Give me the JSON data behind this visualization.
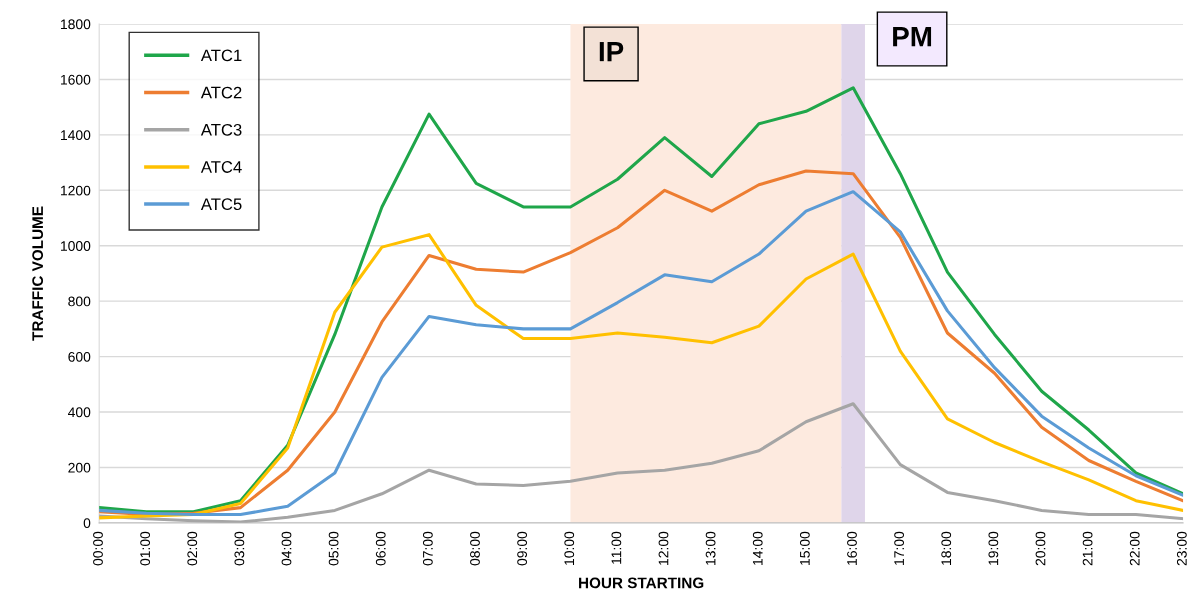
{
  "chart_data": {
    "type": "line",
    "xlabel": "HOUR STARTING",
    "ylabel": "TRAFFIC VOLUME",
    "x": [
      0,
      1,
      2,
      3,
      4,
      5,
      6,
      7,
      8,
      9,
      10,
      11,
      12,
      13,
      14,
      15,
      16,
      17,
      18,
      19,
      20,
      21,
      22,
      23
    ],
    "xlim": [
      0,
      23
    ],
    "xticks": [
      {
        "value": 0,
        "label": "00:00"
      },
      {
        "value": 1,
        "label": "01:00"
      },
      {
        "value": 2,
        "label": "02:00"
      },
      {
        "value": 3,
        "label": "03:00"
      },
      {
        "value": 4,
        "label": "04:00"
      },
      {
        "value": 5,
        "label": "05:00"
      },
      {
        "value": 6,
        "label": "06:00"
      },
      {
        "value": 7,
        "label": "07:00"
      },
      {
        "value": 8,
        "label": "08:00"
      },
      {
        "value": 9,
        "label": "09:00"
      },
      {
        "value": 10,
        "label": "10:00"
      },
      {
        "value": 11,
        "label": "11:00"
      },
      {
        "value": 12,
        "label": "12:00"
      },
      {
        "value": 13,
        "label": "13:00"
      },
      {
        "value": 14,
        "label": "14:00"
      },
      {
        "value": 15,
        "label": "15:00"
      },
      {
        "value": 16,
        "label": "16:00"
      },
      {
        "value": 17,
        "label": "17:00"
      },
      {
        "value": 18,
        "label": "18:00"
      },
      {
        "value": 19,
        "label": "19:00"
      },
      {
        "value": 20,
        "label": "20:00"
      },
      {
        "value": 21,
        "label": "21:00"
      },
      {
        "value": 22,
        "label": "22:00"
      },
      {
        "value": 23,
        "label": "23:00"
      }
    ],
    "ylim": [
      0,
      1800
    ],
    "yticks": [
      0,
      200,
      400,
      600,
      800,
      1000,
      1200,
      1400,
      1600,
      1800
    ],
    "grid": "y",
    "legend": "top left",
    "marker": "none",
    "line_style": "solid",
    "bands": [
      {
        "axis": "x",
        "from": 10,
        "to": 15.75,
        "label": "IP",
        "color": "#fdeadf"
      },
      {
        "axis": "x",
        "from": 15.75,
        "to": 16.25,
        "label": "PM",
        "color": "#dfd5ea"
      }
    ],
    "series": [
      {
        "name": "ATC1",
        "color": "#1fa64a",
        "values": [
          55,
          40,
          40,
          80,
          280,
          680,
          1140,
          1475,
          1225,
          1140,
          1140,
          1240,
          1390,
          1250,
          1440,
          1485,
          1570,
          1260,
          905,
          680,
          475,
          335,
          180,
          105
        ]
      },
      {
        "name": "ATC2",
        "color": "#ed7d31",
        "values": [
          40,
          30,
          35,
          55,
          190,
          400,
          725,
          965,
          915,
          905,
          975,
          1065,
          1200,
          1125,
          1220,
          1270,
          1260,
          1030,
          685,
          540,
          345,
          225,
          150,
          80
        ]
      },
      {
        "name": "ATC3",
        "color": "#a5a5a5",
        "values": [
          25,
          15,
          8,
          3,
          20,
          45,
          105,
          190,
          140,
          135,
          150,
          180,
          190,
          215,
          260,
          365,
          430,
          210,
          110,
          80,
          45,
          30,
          30,
          15
        ]
      },
      {
        "name": "ATC4",
        "color": "#ffc000",
        "values": [
          18,
          25,
          30,
          70,
          270,
          760,
          995,
          1040,
          785,
          665,
          665,
          685,
          670,
          650,
          710,
          880,
          970,
          620,
          375,
          290,
          220,
          155,
          80,
          45
        ]
      },
      {
        "name": "ATC5",
        "color": "#5b9bd5",
        "values": [
          45,
          35,
          30,
          30,
          60,
          180,
          525,
          745,
          715,
          700,
          700,
          795,
          895,
          870,
          970,
          1125,
          1195,
          1050,
          765,
          560,
          385,
          270,
          170,
          100
        ]
      }
    ]
  }
}
